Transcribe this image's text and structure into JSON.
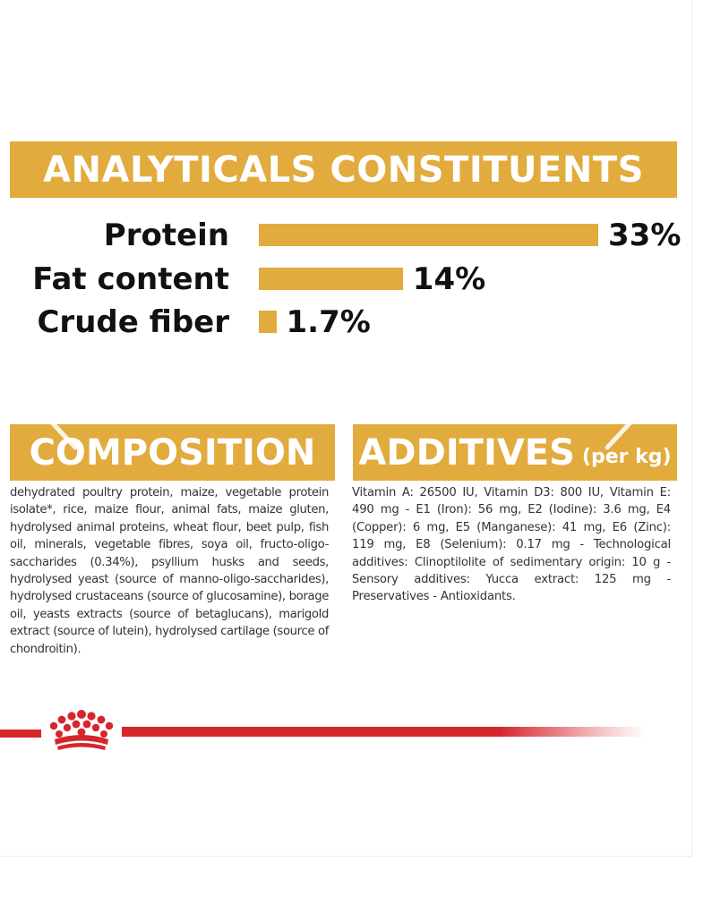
{
  "analytics": {
    "title": "ANALYTICALS CONSTITUENTS",
    "rows": [
      {
        "label": "Protein",
        "value_text": "33%",
        "value": 33
      },
      {
        "label": "Fat content",
        "value_text": "14%",
        "value": 14
      },
      {
        "label": "Crude fiber",
        "value_text": "1.7%",
        "value": 1.7
      }
    ]
  },
  "chart_data": {
    "type": "bar",
    "orientation": "horizontal",
    "title": "ANALYTICALS CONSTITUENTS",
    "categories": [
      "Protein",
      "Fat content",
      "Crude fiber"
    ],
    "values": [
      33,
      14,
      1.7
    ],
    "data_labels": [
      "33%",
      "14%",
      "1.7%"
    ],
    "unit": "%",
    "grid": false,
    "color": "#e2ab3e"
  },
  "composition": {
    "title": "COMPOSITION",
    "text": "dehydrated poultry protein, maize, vegetable protein isolate*, rice, maize flour, animal fats, maize gluten, hydrolysed animal proteins, wheat flour, beet pulp, fish oil, minerals, vegetable fibres, soya oil, fructo-oligo-saccharides (0.34%), psyllium husks and seeds, hydrolysed yeast (source of manno-oligo-saccharides), hydrolysed crustaceans (source of glucosamine), borage oil, yeasts extracts (source of betaglucans), marigold extract (source of lutein), hydrolysed cartilage (source of chondroitin)."
  },
  "additives": {
    "title": "ADDITIVES",
    "subtitle": "(per kg)",
    "text": "Vitamin A: 26500 IU, Vitamin D3: 800 IU, Vitamin E: 490 mg - E1 (Iron): 56 mg, E2 (Iodine): 3.6 mg, E4 (Copper): 6 mg, E5 (Manganese): 41 mg, E6 (Zinc): 119 mg, E8 (Selenium): 0.17 mg - Technological additives: Clinoptilolite of sedimentary origin: 10 g - Sensory additives: Yucca extract: 125 mg - Preservatives - Antioxidants."
  },
  "icons": {
    "prev": "chevron-left-icon",
    "next": "chevron-right-icon",
    "logo": "crown-logo-icon"
  },
  "colors": {
    "accent": "#e2ab3e",
    "brand_red": "#d6262c",
    "text": "#111111"
  }
}
